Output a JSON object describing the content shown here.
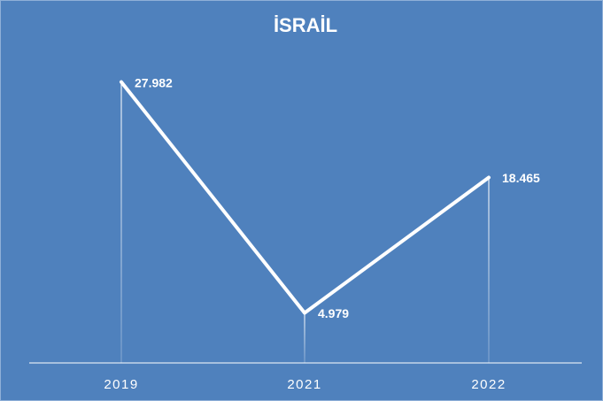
{
  "chart_data": {
    "type": "line",
    "title": "İSRAİL",
    "categories": [
      "2019",
      "2021",
      "2022"
    ],
    "values": [
      27982,
      4979,
      18465
    ],
    "value_labels": [
      "27.982",
      "4.979",
      "18.465"
    ],
    "color": "#ffffff",
    "ylim": [
      0,
      32000
    ]
  }
}
